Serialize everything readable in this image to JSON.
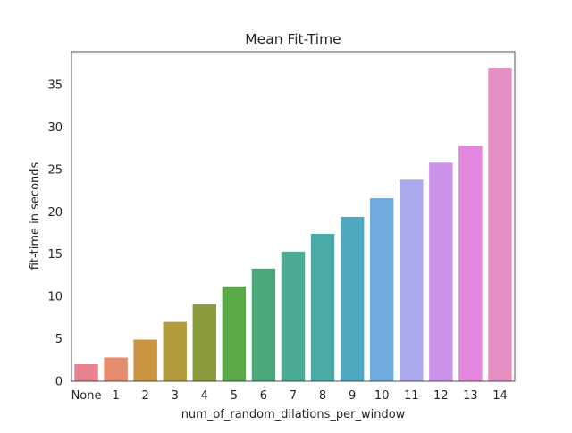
{
  "chart_data": {
    "type": "bar",
    "title": "Mean Fit-Time",
    "xlabel": "num_of_random_dilations_per_window",
    "ylabel": "fit-time in seconds",
    "categories": [
      "None",
      "1",
      "2",
      "3",
      "4",
      "5",
      "6",
      "7",
      "8",
      "9",
      "10",
      "11",
      "12",
      "13",
      "14"
    ],
    "values": [
      2.0,
      2.8,
      4.9,
      7.0,
      9.1,
      11.2,
      13.3,
      15.3,
      17.4,
      19.4,
      21.6,
      23.8,
      25.8,
      27.8,
      37.0
    ],
    "colors": [
      "#e8828f",
      "#e58c6c",
      "#cb9541",
      "#b39b3d",
      "#8b9c3e",
      "#5aa847",
      "#4aa87a",
      "#4bab93",
      "#4aaba8",
      "#4da9c0",
      "#6fabdf",
      "#a9a9ec",
      "#cc94e8",
      "#e487de",
      "#e890c2"
    ],
    "ylim": [
      0,
      38.9
    ],
    "yticks": [
      0,
      5,
      10,
      15,
      20,
      25,
      30,
      35
    ],
    "grid": false
  }
}
